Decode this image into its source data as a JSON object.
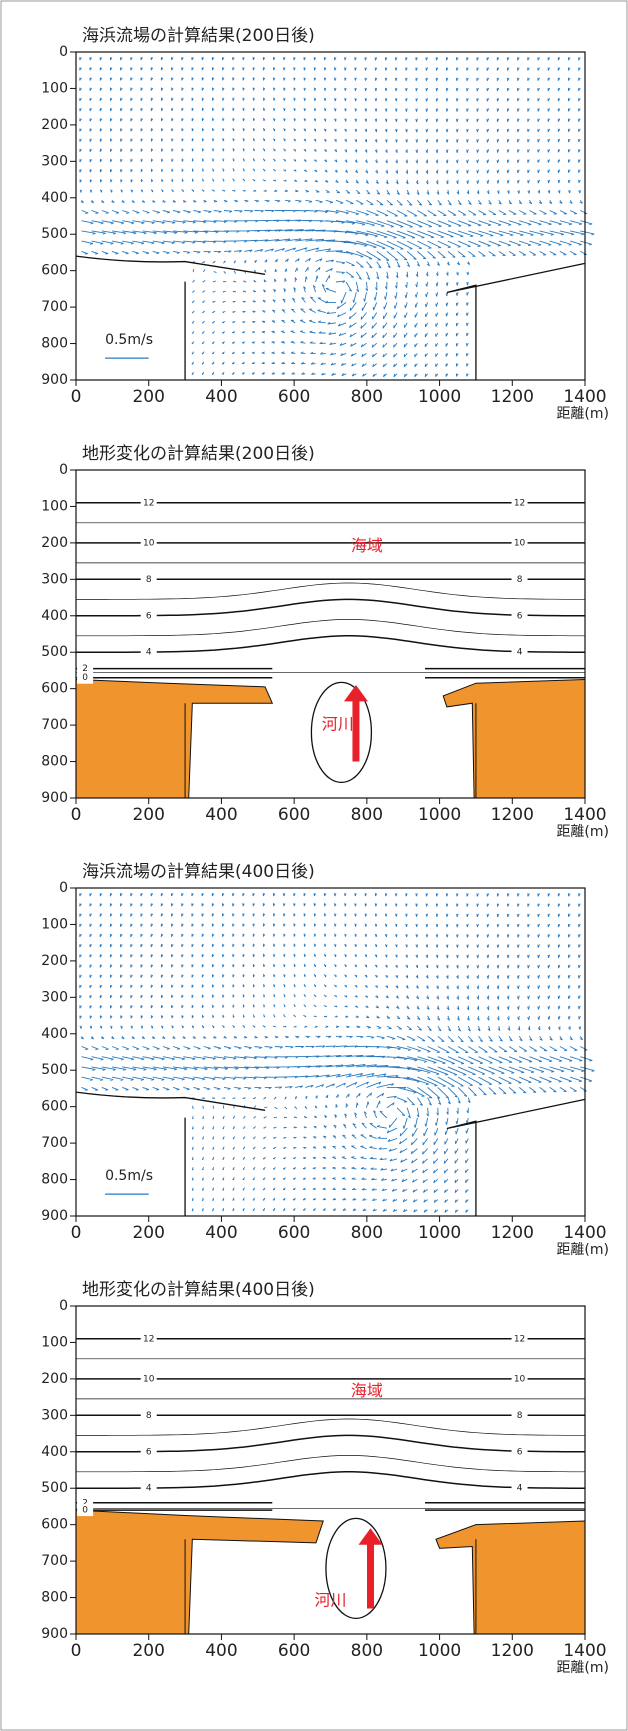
{
  "chart_data": [
    {
      "type": "quiver",
      "title": "海浜流場の計算結果(200日後)",
      "xlabel": "距離(m)",
      "xlim": [
        0,
        1400
      ],
      "ylim": [
        0,
        900
      ],
      "y_inverted": true,
      "xticks": [
        0,
        200,
        400,
        600,
        800,
        1000,
        1200,
        1400
      ],
      "yticks": [
        0,
        100,
        200,
        300,
        400,
        500,
        600,
        700,
        800,
        900
      ],
      "scale_label": "0.5m/s",
      "color": "#2a7bc0"
    },
    {
      "type": "contour",
      "title": "地形変化の計算結果(200日後)",
      "xlabel": "距離(m)",
      "xlim": [
        0,
        1400
      ],
      "ylim": [
        0,
        900
      ],
      "y_inverted": true,
      "xticks": [
        0,
        200,
        400,
        600,
        800,
        1000,
        1200,
        1400
      ],
      "yticks": [
        0,
        100,
        200,
        300,
        400,
        500,
        600,
        700,
        800,
        900
      ],
      "contours": [
        {
          "level": 12,
          "y": 90
        },
        {
          "level": 10,
          "y": 200
        },
        {
          "level": 8,
          "y": 300
        },
        {
          "level": 6,
          "y": 400
        },
        {
          "level": 4,
          "y": 500
        },
        {
          "level": 2,
          "y": 545
        },
        {
          "level": 0,
          "y": 570
        }
      ],
      "annotations": [
        "海域",
        "河川"
      ],
      "land_color": "#f0952e",
      "annotation_color": "#e8202a"
    },
    {
      "type": "quiver",
      "title": "海浜流場の計算結果(400日後)",
      "xlabel": "距離(m)",
      "xlim": [
        0,
        1400
      ],
      "ylim": [
        0,
        900
      ],
      "y_inverted": true,
      "xticks": [
        0,
        200,
        400,
        600,
        800,
        1000,
        1200,
        1400
      ],
      "yticks": [
        0,
        100,
        200,
        300,
        400,
        500,
        600,
        700,
        800,
        900
      ],
      "scale_label": "0.5m/s",
      "color": "#2a7bc0"
    },
    {
      "type": "contour",
      "title": "地形変化の計算結果(400日後)",
      "xlabel": "距離(m)",
      "xlim": [
        0,
        1400
      ],
      "ylim": [
        0,
        900
      ],
      "y_inverted": true,
      "xticks": [
        0,
        200,
        400,
        600,
        800,
        1000,
        1200,
        1400
      ],
      "yticks": [
        0,
        100,
        200,
        300,
        400,
        500,
        600,
        700,
        800,
        900
      ],
      "contours": [
        {
          "level": 12,
          "y": 90
        },
        {
          "level": 10,
          "y": 200
        },
        {
          "level": 8,
          "y": 300
        },
        {
          "level": 6,
          "y": 400
        },
        {
          "level": 4,
          "y": 500
        },
        {
          "level": 2,
          "y": 540
        },
        {
          "level": 0,
          "y": 560
        }
      ],
      "annotations": [
        "海域",
        "河川"
      ],
      "land_color": "#f0952e",
      "annotation_color": "#e8202a"
    }
  ]
}
